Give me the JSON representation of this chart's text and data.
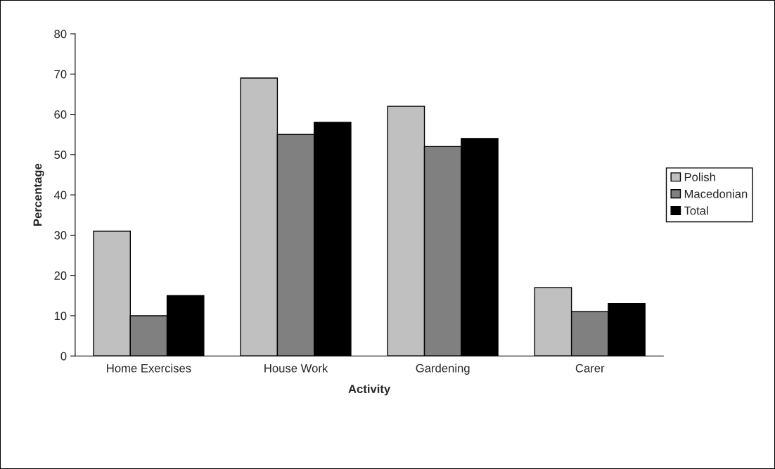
{
  "chart_data": {
    "type": "bar",
    "xlabel": "Activity",
    "ylabel": "Percentage",
    "categories": [
      "Home Exercises",
      "House Work",
      "Gardening",
      "Carer"
    ],
    "series": [
      {
        "name": "Polish",
        "color": "#c0c0c0",
        "values": [
          31,
          69,
          62,
          17
        ]
      },
      {
        "name": "Macedonian",
        "color": "#808080",
        "values": [
          10,
          55,
          52,
          11
        ]
      },
      {
        "name": "Total",
        "color": "#000000",
        "values": [
          15,
          58,
          54,
          13
        ]
      }
    ],
    "ylim": [
      0,
      80
    ],
    "yticks": [
      0,
      10,
      20,
      30,
      40,
      50,
      60,
      70,
      80
    ],
    "grid": false,
    "legend": "right"
  }
}
